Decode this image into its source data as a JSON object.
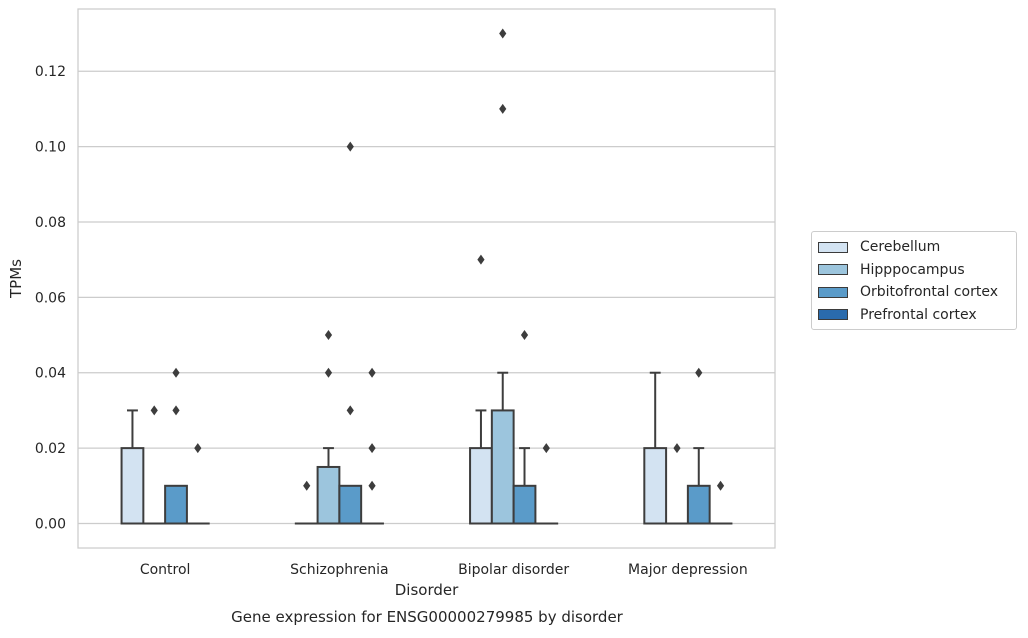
{
  "chart_data": {
    "type": "box",
    "xlabel": "Disorder",
    "ylabel": "TPMs",
    "caption": "Gene expression for ENSG00000279985 by disorder",
    "ylim": [
      -0.0065,
      0.1365
    ],
    "yticks": [
      0.0,
      0.02,
      0.04,
      0.06,
      0.08,
      0.1,
      0.12
    ],
    "ytick_labels": [
      "0.00",
      "0.02",
      "0.04",
      "0.06",
      "0.08",
      "0.10",
      "0.12"
    ],
    "grid": "horizontal",
    "legend_position": "right, outside",
    "categories": [
      "Control",
      "Schizophrenia",
      "Bipolar disorder",
      "Major depression"
    ],
    "series": [
      {
        "name": "Cerebellum",
        "color": "#d3e3f2",
        "boxes": [
          {
            "q1": 0.0,
            "median": 0.0,
            "q3": 0.02,
            "whisker_low": 0.0,
            "whisker_high": 0.03,
            "outliers": []
          },
          {
            "q1": 0.0,
            "median": 0.0,
            "q3": 0.0,
            "whisker_low": 0.0,
            "whisker_high": 0.0,
            "outliers": [
              0.01
            ]
          },
          {
            "q1": 0.0,
            "median": 0.0,
            "q3": 0.02,
            "whisker_low": 0.0,
            "whisker_high": 0.03,
            "outliers": [
              0.07
            ]
          },
          {
            "q1": 0.0,
            "median": 0.0,
            "q3": 0.02,
            "whisker_low": 0.0,
            "whisker_high": 0.04,
            "outliers": []
          }
        ]
      },
      {
        "name": "Hipppocampus",
        "color": "#9cc5dd",
        "boxes": [
          {
            "q1": 0.0,
            "median": 0.0,
            "q3": 0.0,
            "whisker_low": 0.0,
            "whisker_high": 0.0,
            "outliers": [
              0.03
            ]
          },
          {
            "q1": 0.0,
            "median": 0.0,
            "q3": 0.015,
            "whisker_low": 0.0,
            "whisker_high": 0.02,
            "outliers": [
              0.04,
              0.05
            ]
          },
          {
            "q1": 0.0,
            "median": 0.0,
            "q3": 0.03,
            "whisker_low": 0.0,
            "whisker_high": 0.04,
            "outliers": [
              0.11,
              0.13
            ]
          },
          {
            "q1": 0.0,
            "median": 0.0,
            "q3": 0.0,
            "whisker_low": 0.0,
            "whisker_high": 0.0,
            "outliers": [
              0.02
            ]
          }
        ]
      },
      {
        "name": "Orbitofrontal cortex",
        "color": "#5a9bc9",
        "boxes": [
          {
            "q1": 0.0,
            "median": 0.0,
            "q3": 0.01,
            "whisker_low": 0.0,
            "whisker_high": 0.01,
            "outliers": [
              0.03,
              0.04
            ]
          },
          {
            "q1": 0.0,
            "median": 0.0,
            "q3": 0.01,
            "whisker_low": 0.0,
            "whisker_high": 0.01,
            "outliers": [
              0.03,
              0.1
            ]
          },
          {
            "q1": 0.0,
            "median": 0.0,
            "q3": 0.01,
            "whisker_low": 0.0,
            "whisker_high": 0.02,
            "outliers": [
              0.05
            ]
          },
          {
            "q1": 0.0,
            "median": 0.0,
            "q3": 0.01,
            "whisker_low": 0.0,
            "whisker_high": 0.02,
            "outliers": [
              0.04
            ]
          }
        ]
      },
      {
        "name": "Prefrontal cortex",
        "color": "#2a6bad",
        "boxes": [
          {
            "q1": 0.0,
            "median": 0.0,
            "q3": 0.0,
            "whisker_low": 0.0,
            "whisker_high": 0.0,
            "outliers": [
              0.02
            ]
          },
          {
            "q1": 0.0,
            "median": 0.0,
            "q3": 0.0,
            "whisker_low": 0.0,
            "whisker_high": 0.0,
            "outliers": [
              0.01,
              0.02,
              0.04
            ]
          },
          {
            "q1": 0.0,
            "median": 0.0,
            "q3": 0.0,
            "whisker_low": 0.0,
            "whisker_high": 0.0,
            "outliers": [
              0.02
            ]
          },
          {
            "q1": 0.0,
            "median": 0.0,
            "q3": 0.0,
            "whisker_low": 0.0,
            "whisker_high": 0.0,
            "outliers": [
              0.01
            ]
          }
        ]
      }
    ]
  }
}
